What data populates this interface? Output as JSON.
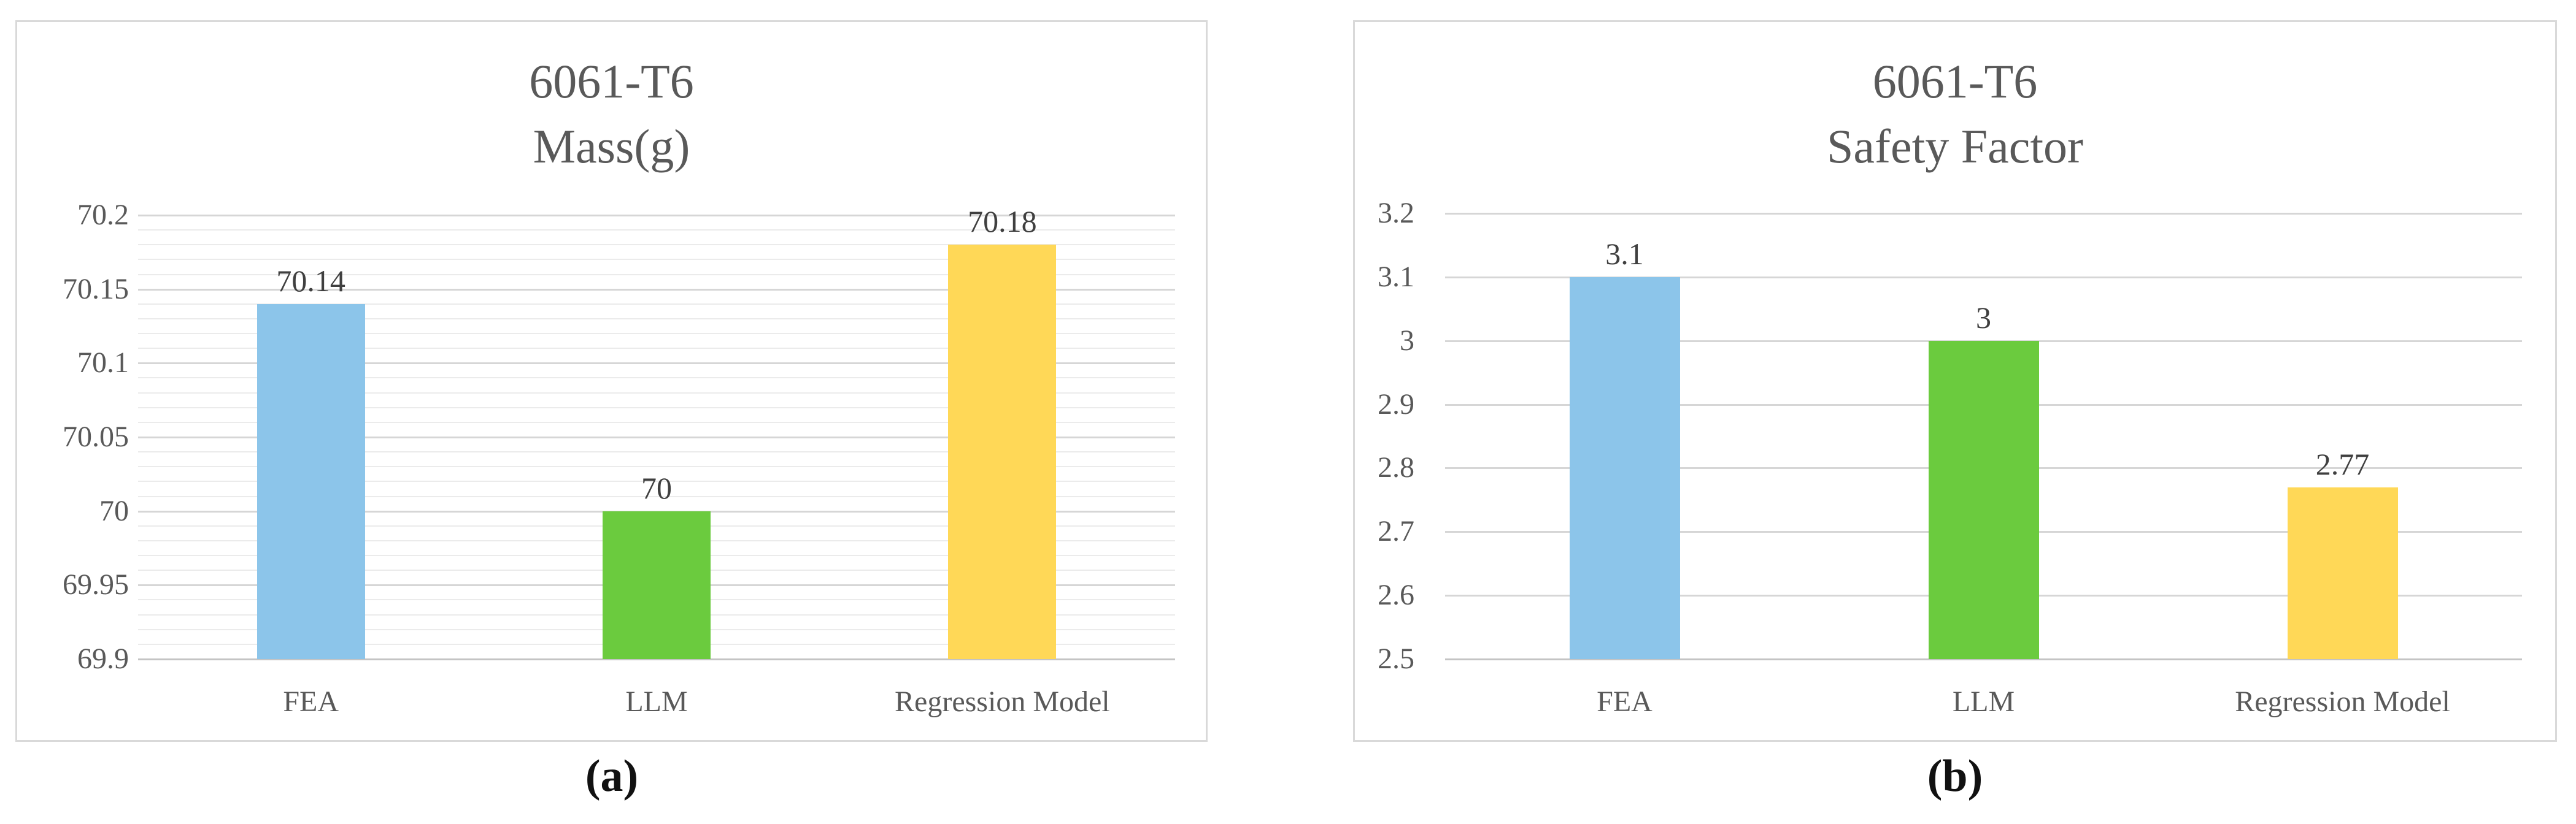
{
  "figure": {
    "caption_a": "(a)",
    "caption_b": "(b)"
  },
  "palette": {
    "background": "#ffffff",
    "panel_border": "#d9d9d9",
    "gridline_major": "#d6d6d6",
    "gridline_minor": "#ebebeb",
    "axis_line": "#c4c4c4",
    "title_color": "#595959",
    "tick_label_color": "#595959",
    "data_label_color": "#3f3f3f",
    "caption_color": "#111111",
    "bar_blue": "#8CC5EA",
    "bar_green": "#6BCB3E",
    "bar_yellow": "#FFD857"
  },
  "chart_data": [
    {
      "type": "bar",
      "title": "6061-T6 Mass(g)",
      "title_lines": [
        "6061-T6",
        "Mass(g)"
      ],
      "categories": [
        "FEA",
        "LLM",
        "Regression Model"
      ],
      "values": [
        70.14,
        70,
        70.18
      ],
      "value_labels": [
        "70.14",
        "70",
        "70.18"
      ],
      "bar_colors": [
        "#8CC5EA",
        "#6BCB3E",
        "#FFD857"
      ],
      "xlabel": "",
      "ylabel": "",
      "ylim": [
        69.9,
        70.2
      ],
      "ytick_step": 0.05,
      "yticks": [
        "70.2",
        "70.15",
        "70.1",
        "70.05",
        "70",
        "69.95",
        "69.9"
      ],
      "minor_gridline_step": 0.01,
      "grid": "major+minor",
      "legend": "none",
      "caption": "(a)"
    },
    {
      "type": "bar",
      "title": "6061-T6 Safety Factor",
      "title_lines": [
        "6061-T6",
        "Safety Factor"
      ],
      "categories": [
        "FEA",
        "LLM",
        "Regression Model"
      ],
      "values": [
        3.1,
        3,
        2.77
      ],
      "value_labels": [
        "3.1",
        "3",
        "2.77"
      ],
      "bar_colors": [
        "#8CC5EA",
        "#6BCB3E",
        "#FFD857"
      ],
      "xlabel": "",
      "ylabel": "",
      "ylim": [
        2.5,
        3.2
      ],
      "ytick_step": 0.1,
      "yticks": [
        "3.2",
        "3.1",
        "3",
        "2.9",
        "2.8",
        "2.7",
        "2.6",
        "2.5"
      ],
      "minor_gridline_step": null,
      "grid": "major",
      "legend": "none",
      "caption": "(b)"
    }
  ]
}
